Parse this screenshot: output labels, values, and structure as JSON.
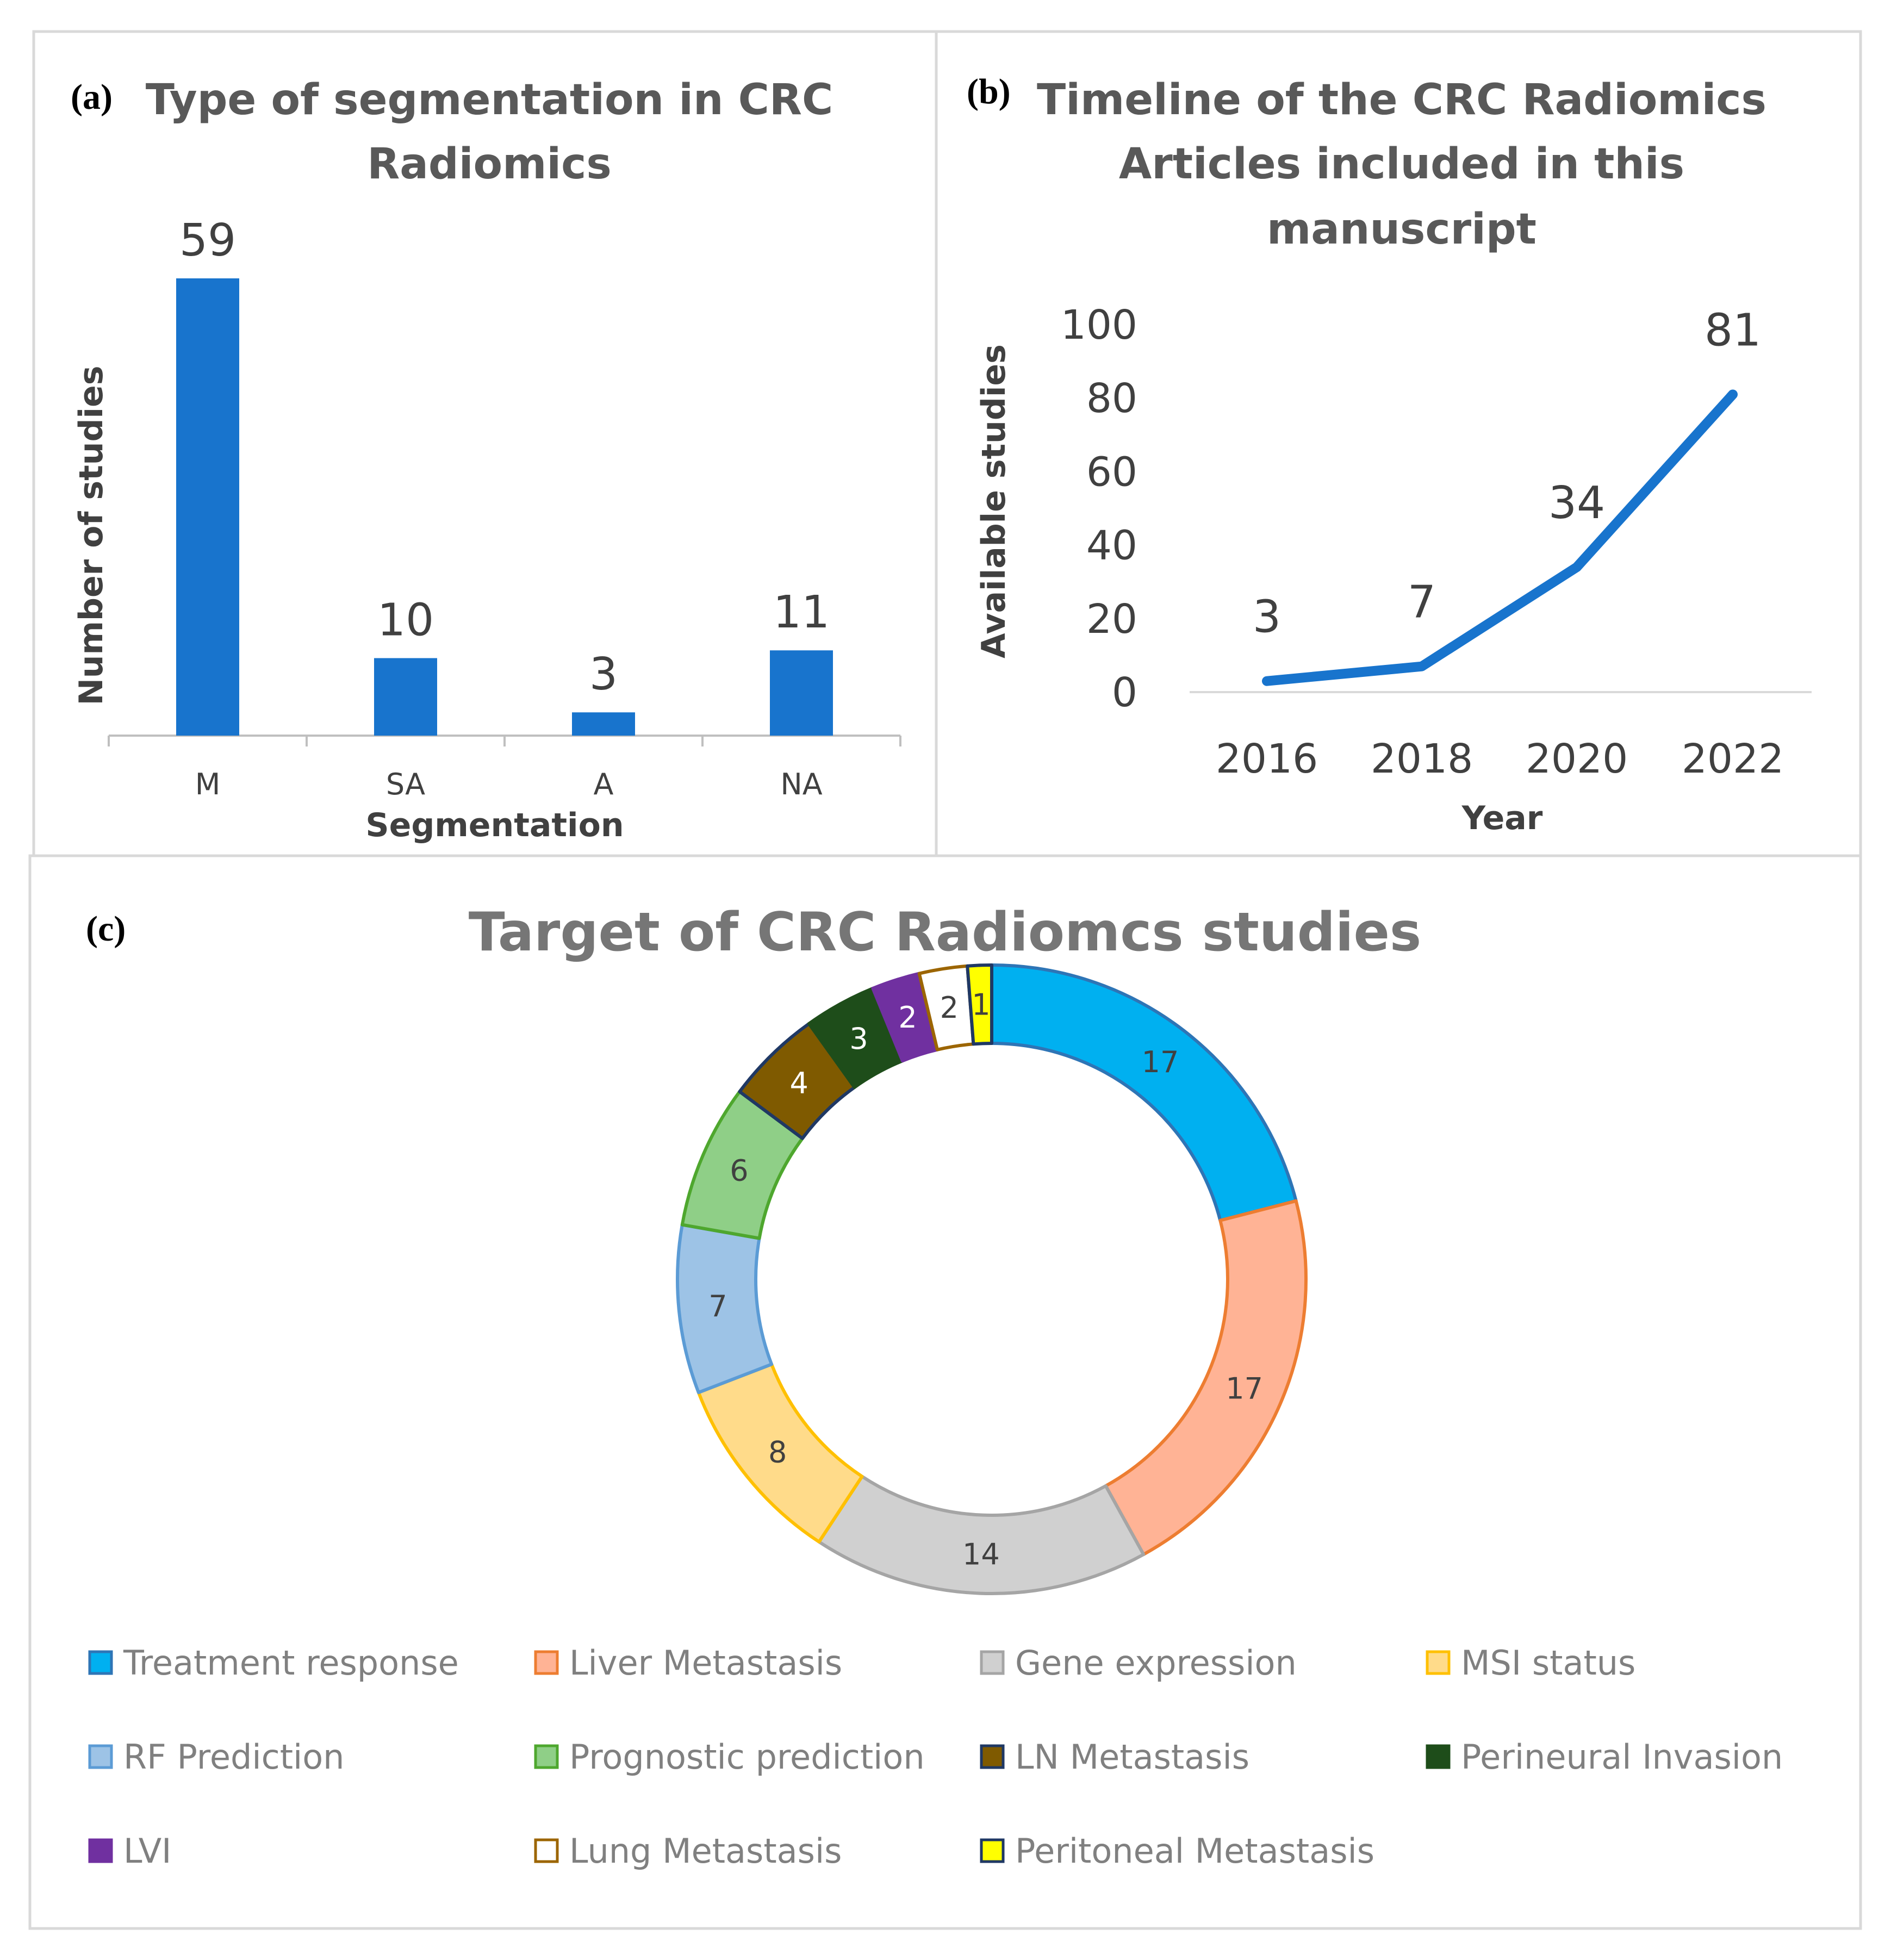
{
  "chart_data": [
    {
      "panel": "(a)",
      "type": "bar",
      "title": "Type of segmentation in CRC Radiomics",
      "title_lines": [
        "Type of segmentation in CRC",
        "Radiomics"
      ],
      "xlabel": "Segmentation",
      "ylabel": "Number of studies",
      "categories": [
        "M",
        "SA",
        "A",
        "NA"
      ],
      "values": [
        59,
        10,
        3,
        11
      ],
      "value_labels": [
        "59",
        "10",
        "3",
        "11"
      ],
      "ylim": [
        0,
        59
      ],
      "grid": false,
      "color": "#1874CD"
    },
    {
      "panel": "(b)",
      "type": "line",
      "title": "Timeline of the CRC Radiomics Articles included in this manuscript",
      "title_lines": [
        "Timeline of the CRC Radiomics",
        "Articles included in this",
        "manuscript"
      ],
      "xlabel": "Year",
      "ylabel": "Available studies",
      "x": [
        "2016",
        "2018",
        "2020",
        "2022"
      ],
      "values": [
        3,
        7,
        34,
        81
      ],
      "value_labels": [
        "3",
        "7",
        "34",
        "81"
      ],
      "ylim": [
        0,
        100
      ],
      "yticks": [
        "0",
        "20",
        "40",
        "60",
        "80",
        "100"
      ],
      "grid": false,
      "color": "#1874CD"
    },
    {
      "panel": "(c)",
      "type": "pie",
      "subtype": "doughnut",
      "title": "Target of CRC Radiomcs studies",
      "legend_position": "bottom",
      "slices": [
        {
          "label": "Treatment response",
          "value": 17,
          "value_label": "17",
          "fill": "#00B0F0",
          "stroke": "#2E75B6",
          "text_color": "#404040"
        },
        {
          "label": "Liver Metastasis",
          "value": 17,
          "value_label": "17",
          "fill": "#FFB395",
          "stroke": "#ED7D31",
          "text_color": "#404040"
        },
        {
          "label": "Gene expression",
          "value": 14,
          "value_label": "14",
          "fill": "#D0D0D0",
          "stroke": "#A5A5A5",
          "text_color": "#404040"
        },
        {
          "label": "MSI status",
          "value": 8,
          "value_label": "8",
          "fill": "#FFDB8A",
          "stroke": "#FFC000",
          "text_color": "#404040"
        },
        {
          "label": "RF Prediction",
          "value": 7,
          "value_label": "7",
          "fill": "#9DC3E6",
          "stroke": "#5B9BD5",
          "text_color": "#404040"
        },
        {
          "label": "Prognostic prediction",
          "value": 6,
          "value_label": "6",
          "fill": "#8FCF87",
          "stroke": "#4EA72E",
          "text_color": "#404040"
        },
        {
          "label": "LN Metastasis",
          "value": 4,
          "value_label": "4",
          "fill": "#7F5A00",
          "stroke": "#1F3864",
          "text_color": "#FFFFFF"
        },
        {
          "label": "Perineural Invasion",
          "value": 3,
          "value_label": "3",
          "fill": "#1E4D1A",
          "stroke": "#1E4D1A",
          "text_color": "#FFFFFF"
        },
        {
          "label": "LVI",
          "value": 2,
          "value_label": "2",
          "fill": "#7030A0",
          "stroke": "#7030A0",
          "text_color": "#FFFFFF"
        },
        {
          "label": "Lung Metastasis",
          "value": 2,
          "value_label": "2",
          "fill": "#FFFFFF",
          "stroke": "#9C6500",
          "text_color": "#404040"
        },
        {
          "label": "Peritoneal Metastasis",
          "value": 1,
          "value_label": "1",
          "fill": "#FFFF00",
          "stroke": "#1F3864",
          "text_color": "#404040"
        }
      ]
    }
  ]
}
